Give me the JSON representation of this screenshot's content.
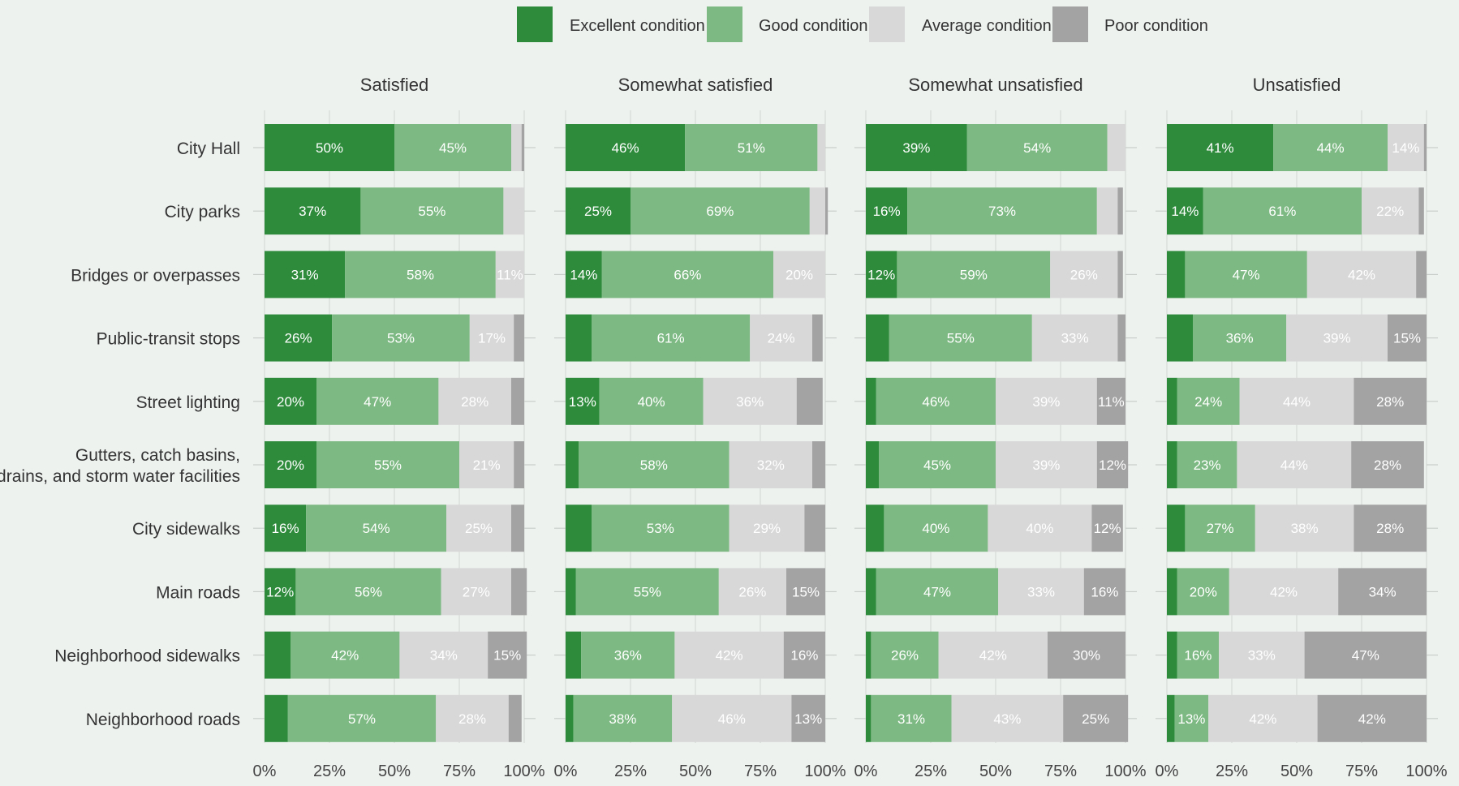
{
  "chart_data": {
    "type": "bar",
    "orientation": "horizontal",
    "stacked": true,
    "legend": {
      "placement": "top",
      "items": [
        {
          "name": "Excellent condition",
          "color": "#2e8b3c"
        },
        {
          "name": "Good condition",
          "color": "#7db982"
        },
        {
          "name": "Average condition",
          "color": "#d8d8d8"
        },
        {
          "name": "Poor condition",
          "color": "#a3a3a3"
        }
      ]
    },
    "xlim": [
      0,
      100
    ],
    "x_ticks": [
      "0%",
      "25%",
      "50%",
      "75%",
      "100%"
    ],
    "categories": [
      [
        "City Hall"
      ],
      [
        "City parks"
      ],
      [
        "Bridges or overpasses"
      ],
      [
        "Public-transit stops"
      ],
      [
        "Street lighting"
      ],
      [
        "Gutters, catch basins,",
        "drains, and storm water facilities"
      ],
      [
        "City sidewalks"
      ],
      [
        "Main roads"
      ],
      [
        "Neighborhood sidewalks"
      ],
      [
        "Neighborhood roads"
      ]
    ],
    "panels": [
      {
        "title": "Satisfied",
        "values": [
          [
            50,
            45,
            4,
            1
          ],
          [
            37,
            55,
            8,
            0
          ],
          [
            31,
            58,
            11,
            0
          ],
          [
            26,
            53,
            17,
            4
          ],
          [
            20,
            47,
            28,
            5
          ],
          [
            20,
            55,
            21,
            4
          ],
          [
            16,
            54,
            25,
            5
          ],
          [
            12,
            56,
            27,
            6
          ],
          [
            10,
            42,
            34,
            15
          ],
          [
            9,
            57,
            28,
            5
          ]
        ],
        "labels": [
          [
            "50%",
            "45%",
            "",
            ""
          ],
          [
            "37%",
            "55%",
            "",
            ""
          ],
          [
            "31%",
            "58%",
            "11%",
            ""
          ],
          [
            "26%",
            "53%",
            "17%",
            ""
          ],
          [
            "20%",
            "47%",
            "28%",
            ""
          ],
          [
            "20%",
            "55%",
            "21%",
            ""
          ],
          [
            "16%",
            "54%",
            "25%",
            ""
          ],
          [
            "12%",
            "56%",
            "27%",
            ""
          ],
          [
            "",
            "42%",
            "34%",
            "15%"
          ],
          [
            "",
            "57%",
            "28%",
            ""
          ]
        ]
      },
      {
        "title": "Somewhat satisfied",
        "values": [
          [
            46,
            51,
            3,
            0
          ],
          [
            25,
            69,
            6,
            1
          ],
          [
            14,
            66,
            20,
            0
          ],
          [
            10,
            61,
            24,
            4
          ],
          [
            13,
            40,
            36,
            10
          ],
          [
            5,
            58,
            32,
            5
          ],
          [
            10,
            53,
            29,
            8
          ],
          [
            4,
            55,
            26,
            15
          ],
          [
            6,
            36,
            42,
            16
          ],
          [
            3,
            38,
            46,
            13
          ]
        ],
        "labels": [
          [
            "46%",
            "51%",
            "",
            ""
          ],
          [
            "25%",
            "69%",
            "",
            ""
          ],
          [
            "14%",
            "66%",
            "20%",
            ""
          ],
          [
            "",
            "61%",
            "24%",
            ""
          ],
          [
            "13%",
            "40%",
            "36%",
            ""
          ],
          [
            "",
            "58%",
            "32%",
            ""
          ],
          [
            "",
            "53%",
            "29%",
            ""
          ],
          [
            "",
            "55%",
            "26%",
            "15%"
          ],
          [
            "",
            "36%",
            "42%",
            "16%"
          ],
          [
            "",
            "38%",
            "46%",
            "13%"
          ]
        ]
      },
      {
        "title": "Somewhat unsatisfied",
        "values": [
          [
            39,
            54,
            7,
            0
          ],
          [
            16,
            73,
            8,
            2
          ],
          [
            12,
            59,
            26,
            2
          ],
          [
            9,
            55,
            33,
            3
          ],
          [
            4,
            46,
            39,
            11
          ],
          [
            5,
            45,
            39,
            12
          ],
          [
            7,
            40,
            40,
            12
          ],
          [
            4,
            47,
            33,
            16
          ],
          [
            2,
            26,
            42,
            30
          ],
          [
            2,
            31,
            43,
            25
          ]
        ],
        "labels": [
          [
            "39%",
            "54%",
            "",
            ""
          ],
          [
            "16%",
            "73%",
            "",
            ""
          ],
          [
            "12%",
            "59%",
            "26%",
            ""
          ],
          [
            "",
            "55%",
            "33%",
            ""
          ],
          [
            "",
            "46%",
            "39%",
            "11%"
          ],
          [
            "",
            "45%",
            "39%",
            "12%"
          ],
          [
            "",
            "40%",
            "40%",
            "12%"
          ],
          [
            "",
            "47%",
            "33%",
            "16%"
          ],
          [
            "",
            "26%",
            "42%",
            "30%"
          ],
          [
            "",
            "31%",
            "43%",
            "25%"
          ]
        ]
      },
      {
        "title": "Unsatisfied",
        "values": [
          [
            41,
            44,
            14,
            1
          ],
          [
            14,
            61,
            22,
            2
          ],
          [
            7,
            47,
            42,
            4
          ],
          [
            10,
            36,
            39,
            15
          ],
          [
            4,
            24,
            44,
            28
          ],
          [
            4,
            23,
            44,
            28
          ],
          [
            7,
            27,
            38,
            28
          ],
          [
            4,
            20,
            42,
            34
          ],
          [
            4,
            16,
            33,
            47
          ],
          [
            3,
            13,
            42,
            42
          ]
        ],
        "labels": [
          [
            "41%",
            "44%",
            "14%",
            ""
          ],
          [
            "14%",
            "61%",
            "22%",
            ""
          ],
          [
            "",
            "47%",
            "42%",
            ""
          ],
          [
            "",
            "36%",
            "39%",
            "15%"
          ],
          [
            "",
            "24%",
            "44%",
            "28%"
          ],
          [
            "",
            "23%",
            "44%",
            "28%"
          ],
          [
            "",
            "27%",
            "38%",
            "28%"
          ],
          [
            "",
            "20%",
            "42%",
            "34%"
          ],
          [
            "",
            "16%",
            "33%",
            "47%"
          ],
          [
            "",
            "13%",
            "42%",
            "42%"
          ]
        ]
      }
    ],
    "grid": true
  }
}
